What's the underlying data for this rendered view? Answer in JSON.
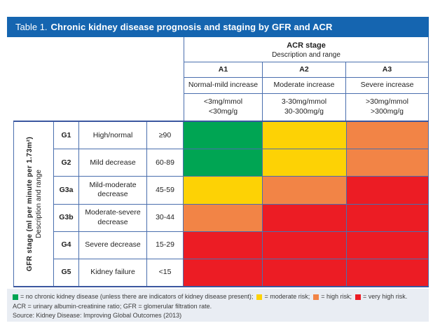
{
  "title": {
    "prefix": "Table 1.",
    "text": "Chronic kidney disease prognosis and staging by GFR and ACR"
  },
  "chart_data": {
    "type": "heatmap",
    "title": "Chronic kidney disease prognosis and staging by GFR and ACR",
    "x_axis": {
      "title": "ACR stage",
      "subtitle": "Description and range",
      "categories": [
        {
          "code": "A1",
          "description": "Normal-mild increase",
          "range_mmol": "<3mg/mmol",
          "range_mg": "<30mg/g"
        },
        {
          "code": "A2",
          "description": "Moderate increase",
          "range_mmol": "3-30mg/mmol",
          "range_mg": "30-300mg/g"
        },
        {
          "code": "A3",
          "description": "Severe increase",
          "range_mmol": ">30mg/mmol",
          "range_mg": ">300mg/g"
        }
      ]
    },
    "y_axis": {
      "title": "GFR stage (ml per minute per 1.73m²)",
      "subtitle": "Description and range",
      "categories": [
        {
          "code": "G1",
          "description": "High/normal",
          "range": "≥90",
          "risks": [
            "green",
            "yellow",
            "orange"
          ]
        },
        {
          "code": "G2",
          "description": "Mild decrease",
          "range": "60-89",
          "risks": [
            "green",
            "yellow",
            "orange"
          ]
        },
        {
          "code": "G3a",
          "description": "Mild-moderate decrease",
          "range": "45-59",
          "risks": [
            "yellow",
            "orange",
            "red"
          ]
        },
        {
          "code": "G3b",
          "description": "Moderate-severe decrease",
          "range": "30-44",
          "risks": [
            "orange",
            "red",
            "red"
          ]
        },
        {
          "code": "G4",
          "description": "Severe decrease",
          "range": "15-29",
          "risks": [
            "red",
            "red",
            "red"
          ]
        },
        {
          "code": "G5",
          "description": "Kidney failure",
          "range": "<15",
          "risks": [
            "red",
            "red",
            "red"
          ]
        }
      ]
    },
    "risk_levels": [
      "green",
      "yellow",
      "orange",
      "red"
    ]
  },
  "legend": [
    {
      "color": "green",
      "label": "= no chronic kidney disease (unless there are indicators of kidney disease present);"
    },
    {
      "color": "yellow",
      "label": "= moderate risk;"
    },
    {
      "color": "orange",
      "label": "= high risk;"
    },
    {
      "color": "red",
      "label": "= very high risk."
    }
  ],
  "footnotes": {
    "abbreviations": "ACR = urinary albumin-creatinine ratio; GFR = glomerular filtration rate.",
    "source": "Source: Kidney Disease: Improving Global Outcomes (2013)"
  },
  "colors": {
    "green": "#00a553",
    "yellow": "#fdd205",
    "orange": "#f28446",
    "red": "#ec1c24",
    "title_bar": "#1565b0",
    "border": "#4a6fae",
    "border_heavy": "#3b57a0",
    "footer_bg": "#e9edf3"
  }
}
